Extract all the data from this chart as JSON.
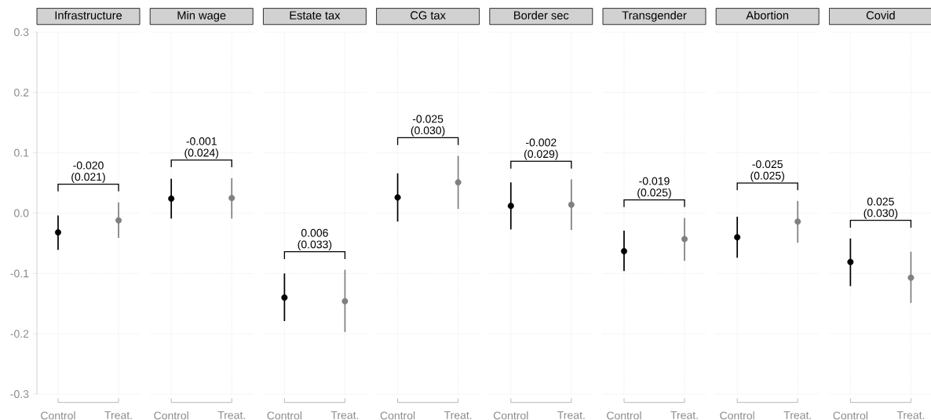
{
  "chart_data": [
    {
      "type": "scatter",
      "title": "Infrastructure",
      "categories": [
        "Control",
        "Treat."
      ],
      "series": [
        {
          "colors": [
            "#000000",
            "#808080"
          ],
          "values": [
            -0.032,
            -0.012
          ],
          "errors": [
            [
              -0.061,
              -0.004
            ],
            [
              -0.041,
              0.018
            ]
          ]
        }
      ],
      "annotations": [
        "-0.020",
        "(0.021)"
      ],
      "ylim": [
        -0.3,
        0.3
      ],
      "yticks": [
        -0.3,
        -0.2,
        -0.1,
        {
          "value": 0,
          "label": "0.0"
        },
        0.1,
        0.2,
        0.3
      ],
      "grid": true,
      "marker": "circle"
    },
    {
      "type": "scatter",
      "title": "Min wage",
      "categories": [
        "Control",
        "Treat."
      ],
      "series": [
        {
          "colors": [
            "#000000",
            "#808080"
          ],
          "values": [
            0.024,
            0.025
          ],
          "errors": [
            [
              -0.009,
              0.057
            ],
            [
              -0.009,
              0.058
            ]
          ]
        }
      ],
      "annotations": [
        "-0.001",
        "(0.024)"
      ],
      "ylim": [
        -0.3,
        0.3
      ],
      "yticks": [
        -0.3,
        -0.2,
        -0.1,
        0,
        0.1,
        0.2,
        0.3
      ],
      "tick_labels": "x",
      "grid": true,
      "marker": "circle"
    },
    {
      "type": "scatter",
      "title": "Estate tax",
      "categories": [
        "Control",
        "Treat."
      ],
      "series": [
        {
          "colors": [
            "#000000",
            "#808080"
          ],
          "values": [
            -0.14,
            -0.146
          ],
          "errors": [
            [
              -0.179,
              -0.1
            ],
            [
              -0.197,
              -0.094
            ]
          ]
        }
      ],
      "annotations": [
        "0.006",
        "(0.033)"
      ],
      "ylim": [
        -0.3,
        0.3
      ],
      "yticks": [
        -0.3,
        -0.2,
        -0.1,
        0,
        0.1,
        0.2,
        0.3
      ],
      "tick_labels": "x",
      "grid": true,
      "marker": "circle"
    },
    {
      "type": "scatter",
      "title": "CG tax",
      "categories": [
        "Control",
        "Treat."
      ],
      "series": [
        {
          "colors": [
            "#000000",
            "#808080"
          ],
          "values": [
            0.026,
            0.051
          ],
          "errors": [
            [
              -0.014,
              0.066
            ],
            [
              0.007,
              0.095
            ]
          ]
        }
      ],
      "annotations": [
        "-0.025",
        "(0.030)"
      ],
      "ylim": [
        -0.3,
        0.3
      ],
      "yticks": [
        -0.3,
        -0.2,
        -0.1,
        0,
        0.1,
        0.2,
        0.3
      ],
      "tick_labels": "x",
      "grid": true,
      "marker": "circle"
    },
    {
      "type": "scatter",
      "title": "Border sec",
      "categories": [
        "Control",
        "Treat."
      ],
      "series": [
        {
          "colors": [
            "#000000",
            "#808080"
          ],
          "values": [
            0.012,
            0.014
          ],
          "errors": [
            [
              -0.027,
              0.051
            ],
            [
              -0.028,
              0.056
            ]
          ]
        }
      ],
      "annotations": [
        "-0.002",
        "(0.029)"
      ],
      "ylim": [
        -0.3,
        0.3
      ],
      "yticks": [
        -0.3,
        -0.2,
        -0.1,
        0,
        0.1,
        0.2,
        0.3
      ],
      "tick_labels": "x",
      "grid": true,
      "marker": "circle"
    },
    {
      "type": "scatter",
      "title": "Transgender",
      "categories": [
        "Control",
        "Treat."
      ],
      "series": [
        {
          "colors": [
            "#000000",
            "#808080"
          ],
          "values": [
            -0.063,
            -0.043
          ],
          "errors": [
            [
              -0.096,
              -0.029
            ],
            [
              -0.079,
              -0.008
            ]
          ]
        }
      ],
      "annotations": [
        "-0.019",
        "(0.025)"
      ],
      "ylim": [
        -0.3,
        0.3
      ],
      "yticks": [
        -0.3,
        -0.2,
        -0.1,
        0,
        0.1,
        0.2,
        0.3
      ],
      "tick_labels": "x",
      "grid": true,
      "marker": "circle"
    },
    {
      "type": "scatter",
      "title": "Abortion",
      "categories": [
        "Control",
        "Treat."
      ],
      "series": [
        {
          "colors": [
            "#000000",
            "#808080"
          ],
          "values": [
            -0.04,
            -0.014
          ],
          "errors": [
            [
              -0.074,
              -0.006
            ],
            [
              -0.049,
              0.02
            ]
          ]
        }
      ],
      "annotations": [
        "-0.025",
        "(0.025)"
      ],
      "ylim": [
        -0.3,
        0.3
      ],
      "yticks": [
        -0.3,
        -0.2,
        -0.1,
        0,
        0.1,
        0.2,
        0.3
      ],
      "tick_labels": "x",
      "grid": true,
      "marker": "circle"
    },
    {
      "type": "scatter",
      "title": "Covid",
      "categories": [
        "Control",
        "Treat."
      ],
      "series": [
        {
          "colors": [
            "#000000",
            "#808080"
          ],
          "values": [
            -0.081,
            -0.107
          ],
          "errors": [
            [
              -0.121,
              -0.042
            ],
            [
              -0.149,
              -0.064
            ]
          ]
        }
      ],
      "annotations": [
        "0.025",
        "(0.030)"
      ],
      "ylim": [
        -0.3,
        0.3
      ],
      "yticks": [
        -0.3,
        -0.2,
        -0.1,
        0,
        0.1,
        0.2,
        0.3
      ],
      "tick_labels": "x",
      "grid": true,
      "marker": "circle"
    }
  ]
}
